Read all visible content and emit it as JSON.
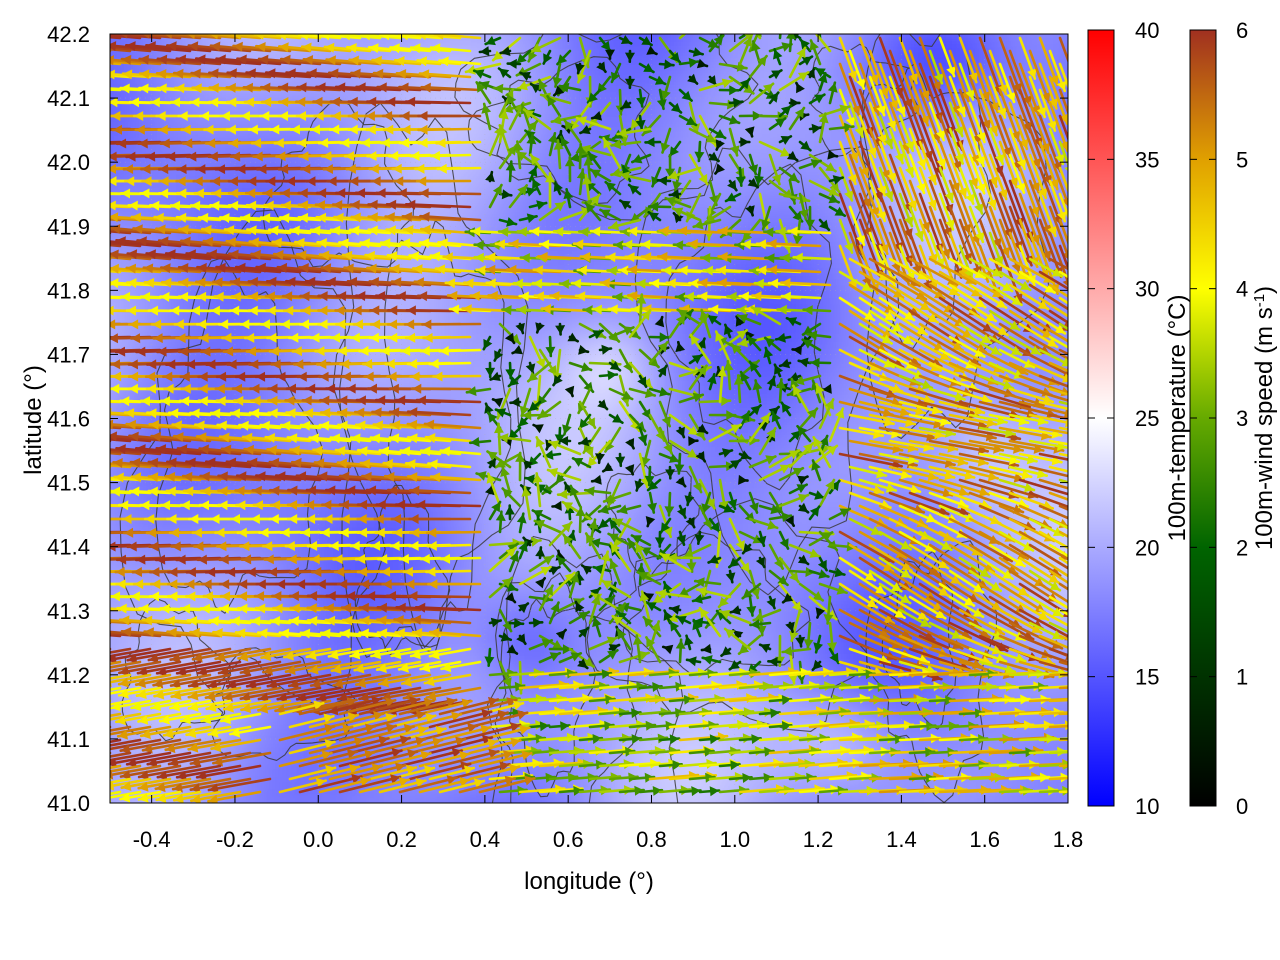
{
  "chart_data": {
    "type": "heatmap",
    "title": "",
    "xlabel": "longitude (°)",
    "ylabel": "latitude (°)",
    "xlim": [
      -0.5,
      1.8
    ],
    "ylim": [
      41.0,
      42.2
    ],
    "x_ticks": [
      -0.4,
      -0.2,
      0.0,
      0.2,
      0.4,
      0.6,
      0.8,
      1.0,
      1.2,
      1.4,
      1.6,
      1.8
    ],
    "y_ticks": [
      41.0,
      41.1,
      41.2,
      41.3,
      41.4,
      41.5,
      41.6,
      41.7,
      41.8,
      41.9,
      42.0,
      42.1,
      42.2
    ],
    "x_tick_labels": [
      "-0.4",
      "-0.2",
      "0.0",
      "0.2",
      "0.4",
      "0.6",
      "0.8",
      "1.0",
      "1.2",
      "1.4",
      "1.6",
      "1.8"
    ],
    "y_tick_labels": [
      "41.0",
      "41.1",
      "41.2",
      "41.3",
      "41.4",
      "41.5",
      "41.6",
      "41.7",
      "41.8",
      "41.9",
      "42.0",
      "42.1",
      "42.2"
    ],
    "layers": [
      "temperature field (color map)",
      "terrain contours (dark gray lines)",
      "wind vectors (colored arrows)"
    ],
    "temperature_colorbar": {
      "label": "100m-temperature (°C)",
      "range": [
        10,
        40
      ],
      "ticks": [
        10,
        15,
        20,
        25,
        30,
        35,
        40
      ],
      "tick_labels": [
        "10",
        "15",
        "20",
        "25",
        "30",
        "35",
        "40"
      ],
      "colors": [
        "#0000ff",
        "#ffffff",
        "#ff0000"
      ]
    },
    "wind_colorbar": {
      "label": "100m-wind speed (m s-1)",
      "label_main": "100m-wind speed (m s",
      "label_sup": "-1",
      "label_end": ")",
      "range": [
        0,
        6
      ],
      "ticks": [
        0,
        1,
        2,
        3,
        4,
        5,
        6
      ],
      "tick_labels": [
        "0",
        "1",
        "2",
        "3",
        "4",
        "5",
        "6"
      ],
      "colors": [
        "#000000",
        "#006400",
        "#66aa00",
        "#ffff00",
        "#e0a000",
        "#a03020"
      ]
    },
    "temperature_field": {
      "typical_range": [
        14,
        23
      ],
      "cool_regions": [
        "north-east corner near 1.5, 42.15",
        "around 0.5, 41.25"
      ],
      "warm_regions": [
        "around 1.25, 41.1",
        "around 1.6, 41.55"
      ]
    },
    "wind_regions": [
      {
        "region": "west (lon -0.5 to 0.4)",
        "direction": "from east (arrows point west)",
        "speed_range": [
          3.5,
          6
        ]
      },
      {
        "region": "central (lon 0.5 to 1.2)",
        "direction": "variable",
        "speed_range": [
          0.3,
          3
        ]
      },
      {
        "region": "east (lon 1.3 to 1.8)",
        "direction": "from north-west / west",
        "speed_range": [
          3,
          6
        ]
      },
      {
        "region": "south-east (lat 41.0 to 41.2)",
        "direction": "from west (arrows point east)",
        "speed_range": [
          2,
          5
        ]
      }
    ]
  }
}
